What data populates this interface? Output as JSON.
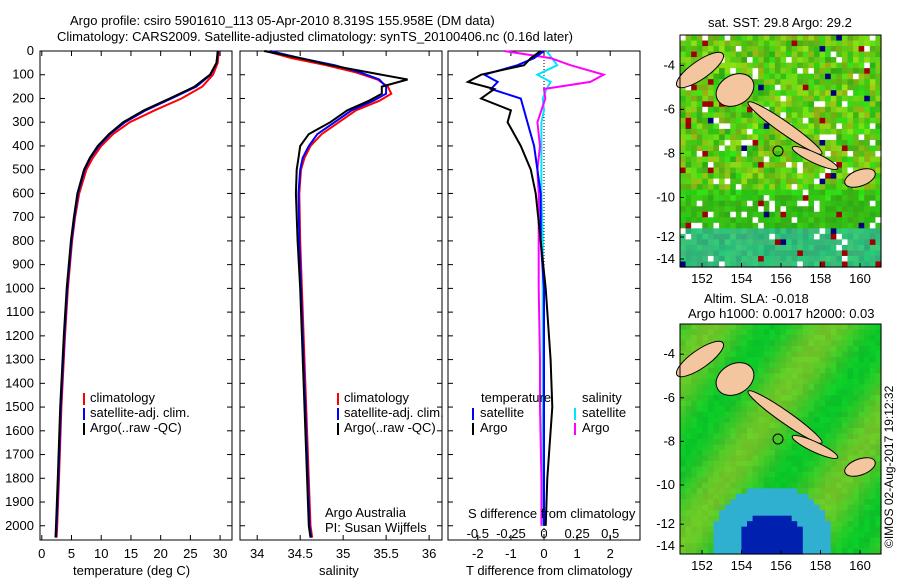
{
  "title_line1": "Argo profile: csiro 5901610_113 05-Apr-2010 8.319S 155.958E (DM data)",
  "title_line2": "Climatology: CARS2009. Satellite-adjusted climatology: synTS_20100406.nc (0.16d later)",
  "colors": {
    "climatology": "#ff0000",
    "satellite": "#0000ff",
    "argo": "#000000",
    "sat_sal": "#00e5ff",
    "argo_sal": "#ff00ff"
  },
  "chart_data": [
    {
      "type": "line",
      "xlabel": "temperature (deg C)",
      "ylabel": "",
      "xlim": [
        -0.3,
        32
      ],
      "ylim": [
        2060,
        0
      ],
      "xticks": [
        "0",
        "5",
        "10",
        "15",
        "20",
        "25",
        "30"
      ],
      "xtick_values": [
        0,
        5,
        10,
        15,
        20,
        25,
        30
      ],
      "yticks": [
        "0",
        "100",
        "200",
        "300",
        "400",
        "500",
        "600",
        "700",
        "800",
        "900",
        "1000",
        "1100",
        "1200",
        "1300",
        "1400",
        "1500",
        "1600",
        "1700",
        "1800",
        "1900",
        "2000"
      ],
      "depth": [
        0,
        50,
        100,
        150,
        200,
        250,
        300,
        350,
        400,
        450,
        500,
        600,
        700,
        800,
        1000,
        1200,
        1500,
        1800,
        2000,
        2050
      ],
      "legend": [
        "climatology",
        "satellite-adj. clim.",
        "Argo(..raw -QC)"
      ],
      "series": [
        {
          "name": "climatology",
          "values": [
            29.8,
            29.6,
            28.8,
            27,
            23.5,
            19,
            14.8,
            12,
            10,
            8.6,
            7.5,
            6.3,
            5.6,
            5.1,
            4.4,
            3.9,
            3.3,
            2.9,
            2.6,
            2.5
          ]
        },
        {
          "name": "satellite",
          "values": [
            29.7,
            29.4,
            28.4,
            26,
            21.8,
            17.5,
            14,
            11.5,
            9.6,
            8.2,
            7.2,
            6.1,
            5.5,
            5,
            4.3,
            3.8,
            3.2,
            2.8,
            2.5,
            2.4
          ]
        },
        {
          "name": "argo",
          "values": [
            29.6,
            29.4,
            28.3,
            25.7,
            21.5,
            17.2,
            13.7,
            11.3,
            9.4,
            8.1,
            7.1,
            6,
            5.4,
            4.9,
            4.2,
            3.7,
            3.1,
            2.7,
            2.4,
            2.3
          ]
        }
      ]
    },
    {
      "type": "line",
      "xlabel": "salinity",
      "xlim": [
        33.8,
        36.15
      ],
      "ylim": [
        2060,
        0
      ],
      "xticks": [
        "34",
        "34.5",
        "35",
        "35.5",
        "36"
      ],
      "xtick_values": [
        34,
        34.5,
        35,
        35.5,
        36
      ],
      "depth": [
        0,
        30,
        60,
        90,
        120,
        150,
        180,
        210,
        250,
        300,
        350,
        400,
        450,
        500,
        600,
        800,
        1000,
        1500,
        2000,
        2050
      ],
      "legend": [
        "climatology",
        "satellite-adj. clim.",
        "Argo(..raw -QC)"
      ],
      "credit1": "Argo Australia",
      "credit2": "PI: Susan Wijffels",
      "series": [
        {
          "name": "climatology",
          "values": [
            34.1,
            34.4,
            34.8,
            35.15,
            35.4,
            35.52,
            35.56,
            35.42,
            35.15,
            34.95,
            34.75,
            34.62,
            34.55,
            34.51,
            34.49,
            34.5,
            34.52,
            34.57,
            34.62,
            34.64
          ]
        },
        {
          "name": "satellite",
          "values": [
            34.15,
            34.5,
            34.9,
            35.2,
            35.42,
            35.5,
            35.5,
            35.35,
            35.1,
            34.9,
            34.7,
            34.6,
            34.53,
            34.5,
            34.48,
            34.49,
            34.51,
            34.56,
            34.61,
            34.63
          ]
        },
        {
          "name": "argo",
          "values": [
            34.08,
            34.5,
            34.85,
            35.3,
            35.75,
            35.45,
            35.45,
            35.3,
            35.05,
            34.85,
            34.6,
            34.5,
            34.48,
            34.46,
            34.45,
            34.47,
            34.5,
            34.55,
            34.6,
            34.62
          ]
        }
      ]
    },
    {
      "type": "line",
      "xlabel": "T difference from climatology",
      "xlabel2": "S difference from climatology",
      "xlim": [
        -2.9,
        2.9
      ],
      "ylim": [
        2060,
        0
      ],
      "xticks": [
        "-2",
        "-1",
        "0",
        "1",
        "2"
      ],
      "xtick_values": [
        -2,
        -1,
        0,
        1,
        2
      ],
      "sticks": [
        "-0.5",
        "-0.25",
        "0",
        "0.25",
        "0.5"
      ],
      "stick_values": [
        -0.5,
        -0.25,
        0,
        0.25,
        0.5
      ],
      "legend_t_head": "temperature",
      "legend_s_head": "salinity",
      "legend": [
        "satellite",
        "Argo",
        "satellite",
        "Argo"
      ],
      "depth": [
        0,
        30,
        60,
        100,
        130,
        160,
        200,
        250,
        300,
        400,
        500,
        600,
        800,
        1000,
        1300,
        1500,
        1800,
        2000
      ],
      "series": [
        {
          "name": "T satellite",
          "values": [
            0,
            -0.3,
            -0.8,
            -1.8,
            -1.4,
            -1.6,
            -0.7,
            -0.6,
            -0.5,
            -0.3,
            -0.2,
            -0.1,
            -0.1,
            0,
            0,
            0,
            0,
            0
          ]
        },
        {
          "name": "T Argo",
          "values": [
            -0.1,
            -0.4,
            -0.6,
            -1.9,
            -2.3,
            -1.5,
            -1.9,
            -1.0,
            -1.1,
            -0.7,
            -0.4,
            -0.25,
            -0.1,
            0.05,
            0.2,
            0.25,
            0.1,
            0.05
          ]
        },
        {
          "name": "S satellite",
          "values": [
            0.02,
            0.06,
            0.1,
            -0.05,
            0.05,
            0.02,
            -0.01,
            0.0,
            -0.02,
            -0.02,
            -0.02,
            -0.02,
            -0.01,
            -0.01,
            -0.01,
            -0.01,
            -0.01,
            -0.01
          ]
        },
        {
          "name": "S Argo",
          "values": [
            -0.3,
            0.05,
            0.2,
            0.45,
            0.35,
            0.0,
            0.01,
            -0.02,
            -0.05,
            -0.03,
            -0.05,
            -0.04,
            -0.04,
            -0.04,
            -0.03,
            -0.03,
            -0.02,
            -0.02
          ]
        }
      ]
    }
  ],
  "map1": {
    "title": "sat. SST: 29.8 Argo: 29.2",
    "yticks": [
      "-4",
      "-6",
      "-8",
      "-10",
      "-12",
      "-14"
    ],
    "xticks": [
      "152",
      "154",
      "156",
      "158",
      "160"
    ]
  },
  "map2": {
    "title1": "Altim. SLA: -0.018",
    "title2": "Argo h1000: 0.0017 h2000: 0.03",
    "yticks": [
      "-4",
      "-6",
      "-8",
      "-10",
      "-12",
      "-14"
    ],
    "xticks": [
      "152",
      "154",
      "156",
      "158",
      "160"
    ]
  },
  "footer": "©IMOS 02-Aug-2017 19:12:32"
}
